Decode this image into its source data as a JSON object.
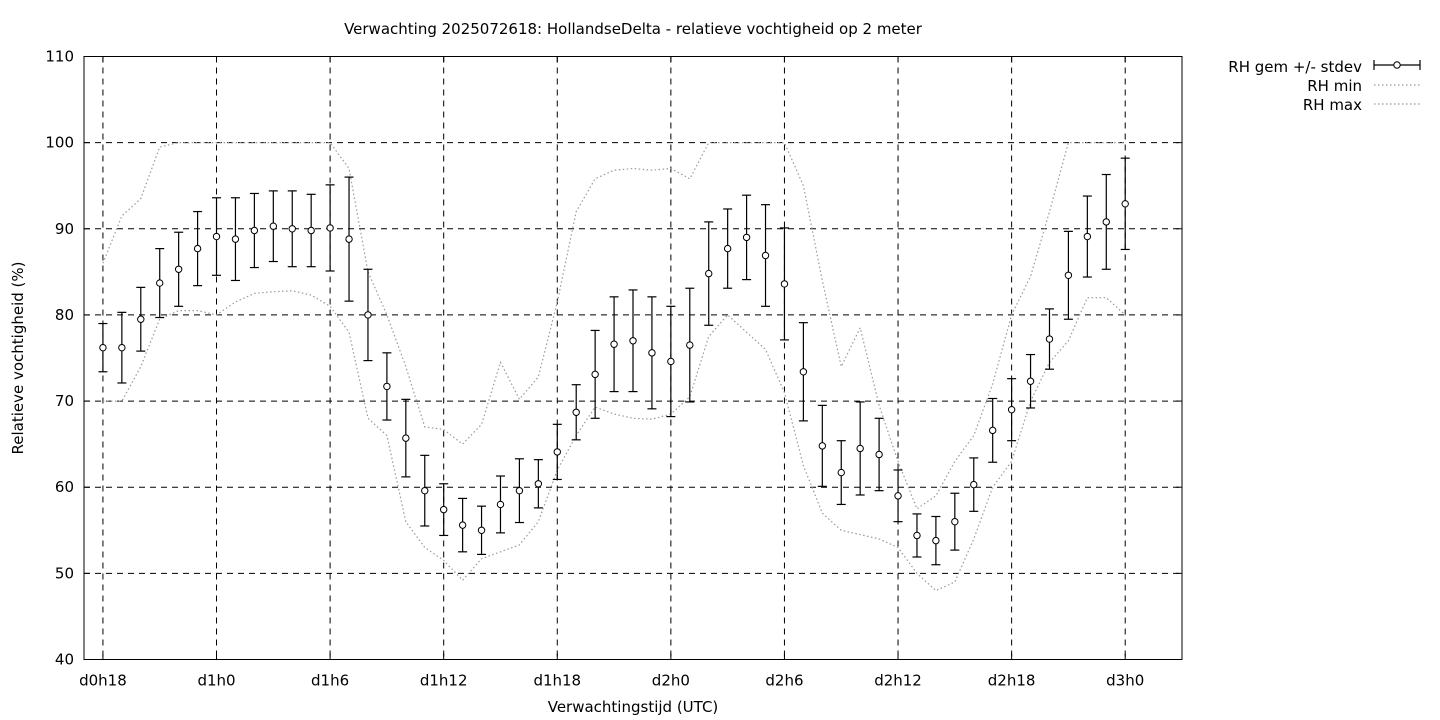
{
  "chart_data": {
    "type": "line",
    "title": "Verwachting 2025072618: HollandseDelta - relatieve vochtigheid op 2 meter",
    "xlabel": "Verwachtingstijd (UTC)",
    "ylabel": "Relatieve vochtigheid (%)",
    "ylim": [
      40,
      110
    ],
    "xlim": [
      17,
      75
    ],
    "grid": true,
    "legend_position": "outside-top-right",
    "y_ticks": [
      "40",
      "50",
      "60",
      "70",
      "80",
      "90",
      "100",
      "110"
    ],
    "x_ticks": [
      {
        "value": 18,
        "label": "d0h18"
      },
      {
        "value": 24,
        "label": "d1h0"
      },
      {
        "value": 30,
        "label": "d1h6"
      },
      {
        "value": 36,
        "label": "d1h12"
      },
      {
        "value": 42,
        "label": "d1h18"
      },
      {
        "value": 48,
        "label": "d2h0"
      },
      {
        "value": 54,
        "label": "d2h6"
      },
      {
        "value": 60,
        "label": "d2h12"
      },
      {
        "value": 66,
        "label": "d2h18"
      },
      {
        "value": 72,
        "label": "d3h0"
      }
    ],
    "x": [
      18,
      19,
      20,
      21,
      22,
      23,
      24,
      25,
      26,
      27,
      28,
      29,
      30,
      31,
      32,
      33,
      34,
      35,
      36,
      37,
      38,
      39,
      40,
      41,
      42,
      43,
      44,
      45,
      46,
      47,
      48,
      49,
      50,
      51,
      52,
      53,
      54,
      55,
      56,
      57,
      58,
      59,
      60,
      61,
      62,
      63,
      64,
      65,
      66,
      67,
      68,
      69,
      70,
      71,
      72
    ],
    "series": [
      {
        "name": "RH gem +/- stdev",
        "style": "points with error bars",
        "mean": [
          76.2,
          76.2,
          79.5,
          83.7,
          85.3,
          87.7,
          89.1,
          88.8,
          89.8,
          90.3,
          90.0,
          89.8,
          90.1,
          88.8,
          80.0,
          71.7,
          65.7,
          59.6,
          57.4,
          55.6,
          55.0,
          58.0,
          59.6,
          60.4,
          64.1,
          68.7,
          73.1,
          76.6,
          77.0,
          75.6,
          74.6,
          76.5,
          84.8,
          87.7,
          89.0,
          86.9,
          83.6,
          73.4,
          64.8,
          61.7,
          64.5,
          63.8,
          59.0,
          54.4,
          53.8,
          56.0,
          60.3,
          66.6,
          69.0,
          72.3,
          77.2,
          84.6,
          89.1,
          90.8,
          92.9
        ],
        "stdev": [
          2.8,
          4.1,
          3.7,
          4.0,
          4.3,
          4.3,
          4.5,
          4.8,
          4.3,
          4.1,
          4.4,
          4.2,
          5.0,
          7.2,
          5.3,
          3.9,
          4.5,
          4.1,
          3.0,
          3.1,
          2.8,
          3.3,
          3.7,
          2.8,
          3.2,
          3.2,
          5.1,
          5.5,
          5.9,
          6.5,
          6.4,
          6.6,
          6.0,
          4.6,
          4.9,
          5.9,
          6.5,
          5.7,
          4.7,
          3.7,
          5.4,
          4.2,
          3.0,
          2.5,
          2.8,
          3.3,
          3.1,
          3.7,
          3.6,
          3.1,
          3.5,
          5.1,
          4.7,
          5.5,
          5.3
        ]
      },
      {
        "name": "RH min",
        "style": "dotted",
        "values": [
          70.0,
          70.0,
          74.0,
          79.5,
          80.5,
          80.5,
          80.0,
          81.5,
          82.5,
          82.7,
          82.8,
          82.3,
          81.0,
          78.0,
          68.0,
          66.0,
          56.0,
          53.0,
          51.5,
          49.2,
          51.7,
          52.5,
          53.3,
          56.0,
          62.0,
          66.0,
          69.3,
          68.5,
          68.0,
          67.9,
          68.5,
          70.5,
          77.5,
          80.0,
          78.0,
          76.0,
          71.0,
          62.5,
          57.0,
          55.0,
          54.5,
          54.0,
          53.0,
          50.0,
          48.0,
          49.0,
          54.0,
          60.0,
          63.0,
          70.0,
          74.5,
          77.0,
          82.0,
          82.0,
          80.0
        ]
      },
      {
        "name": "RH max",
        "style": "dotted",
        "values": [
          86.0,
          91.5,
          93.5,
          99.5,
          100.0,
          100.0,
          100.0,
          100.0,
          100.0,
          100.0,
          100.0,
          100.0,
          100.0,
          97.0,
          85.0,
          80.0,
          74.0,
          67.0,
          66.7,
          65.0,
          67.3,
          74.5,
          70.2,
          72.8,
          81.5,
          92.0,
          95.8,
          96.8,
          97.0,
          96.8,
          97.0,
          95.8,
          100.0,
          100.0,
          100.0,
          100.0,
          100.0,
          95.0,
          84.0,
          74.0,
          78.5,
          69.5,
          63.0,
          57.5,
          59.0,
          63.0,
          66.0,
          72.0,
          80.0,
          84.5,
          92.0,
          100.0,
          100.0,
          100.0,
          100.0
        ]
      }
    ]
  }
}
